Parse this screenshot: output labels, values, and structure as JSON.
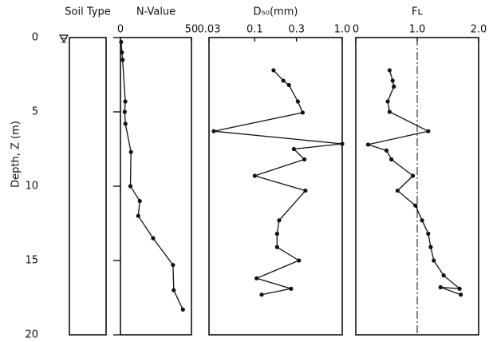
{
  "chart_data": [
    {
      "type": "soil-column",
      "title": "Soil Type",
      "y_label": "Depth, Z (m)",
      "ylim": [
        0,
        20
      ],
      "yticks": [
        0,
        5,
        10,
        15,
        20
      ]
    },
    {
      "type": "line",
      "title": "N-Value",
      "xlim": [
        0,
        50
      ],
      "xticks": [
        0,
        50
      ],
      "depth": [
        0.3,
        1.0,
        1.5,
        4.3,
        5.0,
        5.8,
        7.7,
        10.0,
        11.0,
        12.0,
        13.5,
        15.3,
        17.0,
        18.3
      ],
      "values": [
        0.5,
        1,
        1.5,
        3.4,
        3,
        3.5,
        7.4,
        7,
        13.6,
        12.5,
        23,
        37,
        37.5,
        44
      ]
    },
    {
      "type": "line",
      "title": "D₅₀(mm)",
      "log_x": true,
      "xlim": [
        0.03,
        1
      ],
      "xticks": [
        0.03,
        0.1,
        0.3,
        {
          "value": 1,
          "label": "1.0"
        }
      ],
      "depth": [
        2.2,
        2.9,
        3.2,
        4.3,
        5.05,
        6.3,
        7.15,
        7.5,
        8.2,
        9.3,
        10.3,
        12.3,
        13.2,
        14.1,
        15.0,
        16.2,
        16.9,
        17.3
      ],
      "values": [
        0.164,
        0.212,
        0.246,
        0.311,
        0.353,
        0.034,
        1.0,
        0.28,
        0.37,
        0.1,
        0.38,
        0.19,
        0.18,
        0.18,
        0.32,
        0.105,
        0.26,
        0.12
      ]
    },
    {
      "type": "line",
      "title": "Fʟ",
      "xlim": [
        0,
        2
      ],
      "xticks": [
        0,
        {
          "value": 1,
          "label": "1.0"
        },
        {
          "value": 2,
          "label": "2.0"
        }
      ],
      "reference_x": 1,
      "depth": [
        2.2,
        2.9,
        3.3,
        4.3,
        5.0,
        6.3,
        7.2,
        7.6,
        8.2,
        9.3,
        10.3,
        11.3,
        12.3,
        13.2,
        14.1,
        15.0,
        16.0,
        16.9,
        16.8,
        17.3
      ],
      "values": [
        0.55,
        0.6,
        0.62,
        0.52,
        0.55,
        1.18,
        0.2,
        0.5,
        0.58,
        0.93,
        0.68,
        0.97,
        1.08,
        1.18,
        1.22,
        1.27,
        1.43,
        1.69,
        1.38,
        1.71
      ]
    }
  ]
}
